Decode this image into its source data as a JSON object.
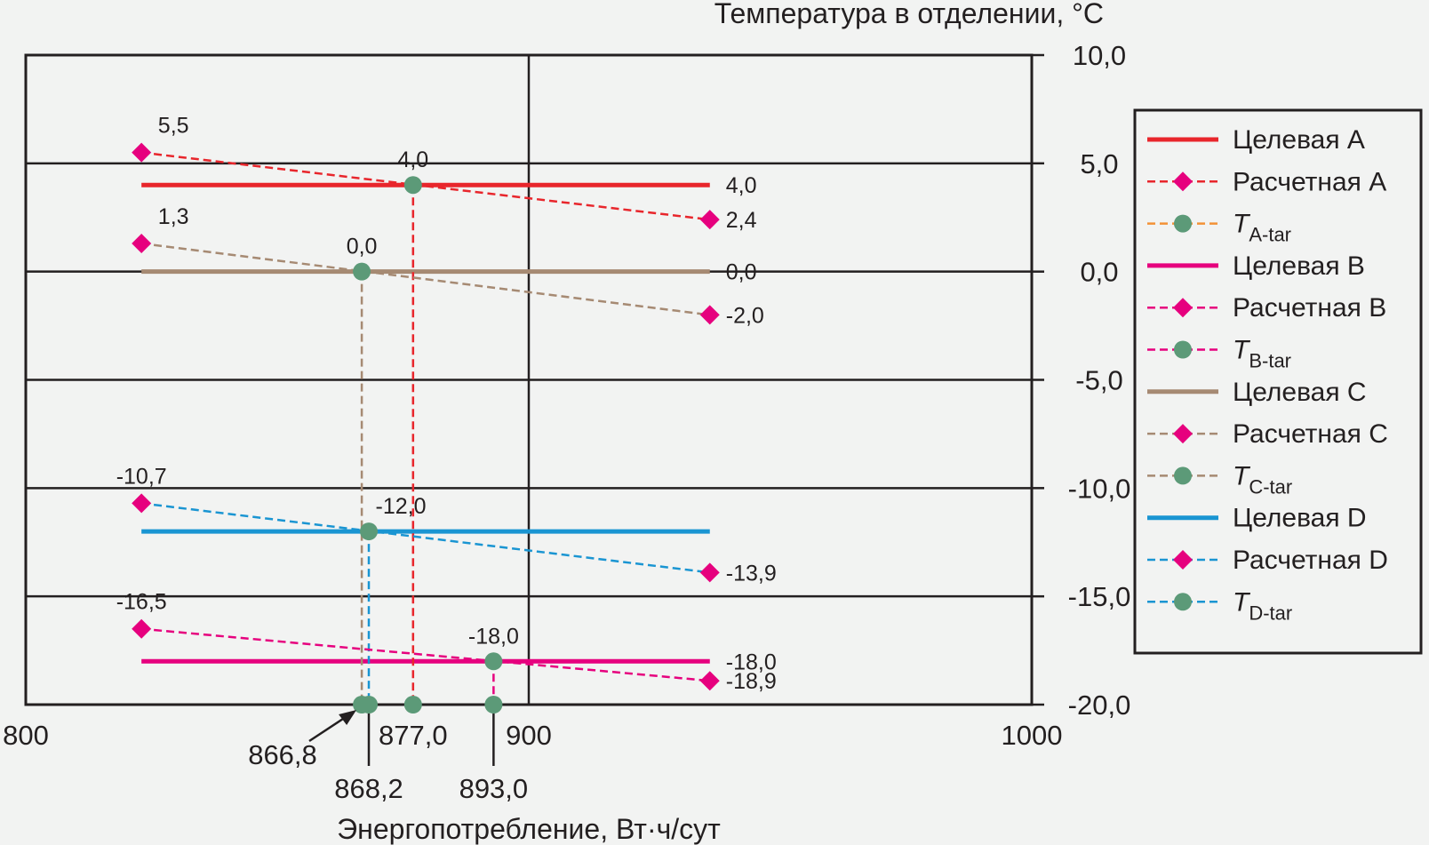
{
  "chart_data": {
    "type": "line",
    "title": "",
    "xlabel": "Энергопотребление, Вт·ч/сут",
    "ylabel": "Температура в отделении, °C",
    "xlim": [
      800,
      1000
    ],
    "ylim": [
      -20,
      10
    ],
    "x_ticks": [
      800,
      900,
      1000
    ],
    "x_tick_labels": [
      "800",
      "900",
      "1000"
    ],
    "y_ticks": [
      10,
      5,
      0,
      -5,
      -10,
      -15,
      -20
    ],
    "y_tick_labels": [
      "10,0",
      "5,0",
      "0,0",
      "-5,0",
      "-10,0",
      "-15,0",
      "-20,0"
    ],
    "x_range_lines": [
      823,
      936
    ],
    "series": [
      {
        "key": "A",
        "color": "#e8262c",
        "target_value": 4.0,
        "target_label": "4,0",
        "calc": [
          {
            "x": 823,
            "y": 5.5,
            "label": "5,5"
          },
          {
            "x": 936,
            "y": 2.4,
            "label": "2,4"
          }
        ],
        "intersection": {
          "x": 877.0,
          "y": 4.0,
          "label": "4,0"
        }
      },
      {
        "key": "B",
        "color": "#e6007e",
        "target_value": -18.0,
        "target_label": "-18,0",
        "calc": [
          {
            "x": 823,
            "y": -16.5,
            "label": "-16,5"
          },
          {
            "x": 936,
            "y": -18.9,
            "label": "-18,9"
          }
        ],
        "intersection": {
          "x": 893.0,
          "y": -18.0,
          "label": "-18,0"
        }
      },
      {
        "key": "C",
        "color": "#a68a73",
        "target_value": 0.0,
        "target_label": "0,0",
        "calc": [
          {
            "x": 823,
            "y": 1.3,
            "label": "1,3"
          },
          {
            "x": 936,
            "y": -2.0,
            "label": "-2,0"
          }
        ],
        "intersection": {
          "x": 866.8,
          "y": 0.0,
          "label": "0,0"
        }
      },
      {
        "key": "D",
        "color": "#1a95d2",
        "target_value": -12.0,
        "target_label": "",
        "calc": [
          {
            "x": 823,
            "y": -10.7,
            "label": "-10,7"
          },
          {
            "x": 936,
            "y": -13.9,
            "label": "-13,9"
          }
        ],
        "intersection": {
          "x": 868.2,
          "y": -12.0,
          "label": "-12,0"
        }
      }
    ],
    "x_annotations": [
      "866,8",
      "868,2",
      "877,0",
      "893,0"
    ],
    "legend": [
      {
        "style": "solid",
        "color": "#e8262c",
        "label": "Целевая A"
      },
      {
        "style": "calc",
        "color": "#e8262c",
        "label": "Расчетная A"
      },
      {
        "style": "tar",
        "color": "#f39237",
        "label": "T",
        "sub": "A-tar"
      },
      {
        "style": "solid",
        "color": "#e6007e",
        "label": "Целевая B"
      },
      {
        "style": "calc",
        "color": "#e6007e",
        "label": "Расчетная B"
      },
      {
        "style": "tar",
        "color": "#e6007e",
        "label": "T",
        "sub": "B-tar"
      },
      {
        "style": "solid",
        "color": "#a68a73",
        "label": "Целевая C"
      },
      {
        "style": "calc",
        "color": "#a68a73",
        "label": "Расчетная C"
      },
      {
        "style": "tar",
        "color": "#a68a73",
        "label": "T",
        "sub": "C-tar"
      },
      {
        "style": "solid",
        "color": "#1a95d2",
        "label": "Целевая D"
      },
      {
        "style": "calc",
        "color": "#1a95d2",
        "label": "Расчетная D"
      },
      {
        "style": "tar",
        "color": "#1a95d2",
        "label": "T",
        "sub": "D-tar"
      }
    ],
    "legend_position": "right",
    "grid": true,
    "marker_colors": {
      "diamond": "#e6007e",
      "circle": "#5c9a78"
    }
  }
}
